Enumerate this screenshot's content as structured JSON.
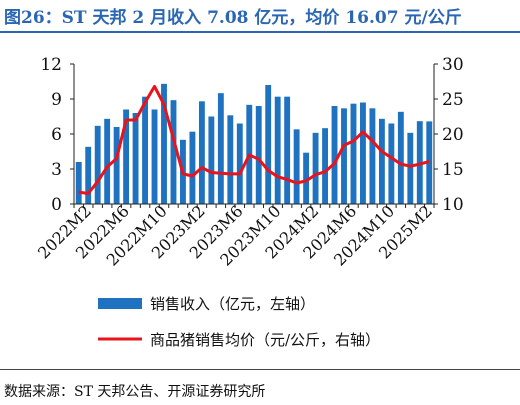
{
  "header": {
    "title": "图26：ST 天邦 2 月收入 7.08 亿元，均价 16.07 元/公斤"
  },
  "footer": {
    "source": "数据来源：ST 天邦公告、开源证券研究所"
  },
  "colors": {
    "title": "#2a66b3",
    "bar": "#1f72bf",
    "line": "#e8141b"
  },
  "chart_data": {
    "type": "bar+line",
    "x": [
      "2022M1",
      "2022M2",
      "2022M3",
      "2022M4",
      "2022M5",
      "2022M6",
      "2022M7",
      "2022M8",
      "2022M9",
      "2022M10",
      "2022M11",
      "2022M12",
      "2023M1",
      "2023M2",
      "2023M3",
      "2023M4",
      "2023M5",
      "2023M6",
      "2023M7",
      "2023M8",
      "2023M9",
      "2023M10",
      "2023M11",
      "2023M12",
      "2024M1",
      "2024M2",
      "2024M3",
      "2024M4",
      "2024M5",
      "2024M6",
      "2024M7",
      "2024M8",
      "2024M9",
      "2024M10",
      "2024M11",
      "2024M12",
      "2025M1",
      "2025M2"
    ],
    "tick_labels": [
      "2022M2",
      "2022M6",
      "2022M10",
      "2023M2",
      "2023M6",
      "2023M10",
      "2024M2",
      "2024M6",
      "2024M10",
      "2025M2"
    ],
    "series": [
      {
        "name": "销售收入（亿元，左轴）",
        "type": "bar",
        "axis": "left",
        "values": [
          3.6,
          4.9,
          6.7,
          7.3,
          6.6,
          8.1,
          7.8,
          9.2,
          8.1,
          10.3,
          8.9,
          5.5,
          6.2,
          8.8,
          7.5,
          9.5,
          7.6,
          6.9,
          8.5,
          8.4,
          10.2,
          9.2,
          9.2,
          6.4,
          4.4,
          6.1,
          6.5,
          8.4,
          8.2,
          8.6,
          8.7,
          8.2,
          7.3,
          6.9,
          7.9,
          6.1,
          7.1,
          7.08
        ]
      },
      {
        "name": "商品猪销售均价（元/公斤，右轴）",
        "type": "line",
        "axis": "right",
        "values": [
          11.7,
          11.5,
          13.2,
          15.3,
          16.5,
          22.0,
          22.0,
          24.5,
          26.8,
          24.2,
          19.3,
          14.3,
          14.0,
          15.2,
          14.5,
          14.4,
          14.3,
          14.3,
          17.0,
          16.4,
          14.8,
          13.9,
          13.5,
          13.0,
          13.3,
          14.2,
          14.6,
          15.8,
          18.4,
          19.0,
          20.3,
          19.0,
          17.5,
          16.6,
          15.7,
          15.4,
          15.7,
          16.07
        ]
      }
    ],
    "y_left": {
      "min": 0,
      "max": 12,
      "ticks": [
        0,
        3,
        6,
        9,
        12
      ]
    },
    "y_right": {
      "min": 10,
      "max": 30,
      "ticks": [
        10,
        15,
        20,
        25,
        30
      ]
    },
    "grid": false,
    "legend_position": "bottom"
  }
}
